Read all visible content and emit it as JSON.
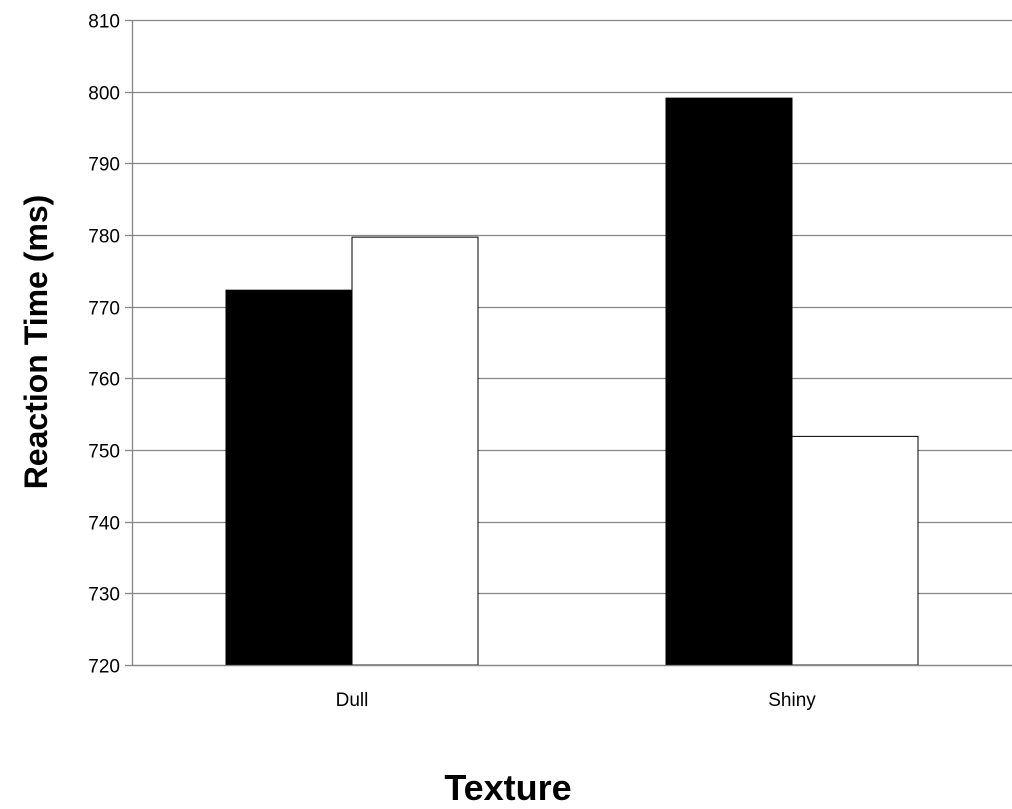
{
  "chart_data": {
    "type": "bar",
    "categories": [
      "Dull",
      "Shiny"
    ],
    "series": [
      {
        "values": [
          772.3,
          799.1
        ],
        "color": "#000000"
      },
      {
        "values": [
          779.7,
          751.9
        ],
        "color": "#ffffff"
      }
    ],
    "xlabel": "Texture",
    "ylabel": "Reaction Time (ms)",
    "ylim": [
      720,
      810
    ],
    "yticks": [
      720,
      730,
      740,
      750,
      760,
      770,
      780,
      790,
      800,
      810
    ],
    "grid": true,
    "legend": "none"
  }
}
